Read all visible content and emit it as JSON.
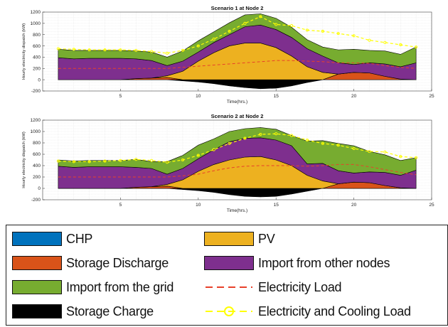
{
  "chart_data": [
    {
      "type": "area",
      "title": "Scenario 1 at Node 2",
      "xlabel": "Time(hrs.)",
      "ylabel": "Hourly electricity dispatch (kW)",
      "xlim": [
        0,
        25
      ],
      "ylim": [
        -200,
        1200
      ],
      "xticks": [
        5,
        10,
        15,
        20,
        25
      ],
      "yticks": [
        -200,
        0,
        200,
        400,
        600,
        800,
        1000,
        1200
      ],
      "grid": true,
      "x": [
        1,
        2,
        3,
        4,
        5,
        6,
        7,
        8,
        9,
        10,
        11,
        12,
        13,
        14,
        15,
        16,
        17,
        18,
        19,
        20,
        21,
        22,
        23,
        24
      ],
      "series": [
        {
          "name": "Storage Charge",
          "values": [
            0,
            0,
            0,
            0,
            0,
            0,
            0,
            0,
            -20,
            -40,
            -70,
            -110,
            -140,
            -160,
            -150,
            -110,
            -50,
            0,
            0,
            0,
            0,
            0,
            0,
            0
          ]
        },
        {
          "name": "CHP",
          "values": [
            0,
            0,
            0,
            0,
            0,
            0,
            0,
            0,
            0,
            0,
            0,
            0,
            0,
            0,
            0,
            0,
            0,
            0,
            0,
            0,
            0,
            0,
            0,
            0
          ]
        },
        {
          "name": "Storage Discharge",
          "values": [
            0,
            0,
            0,
            0,
            0,
            20,
            30,
            40,
            0,
            0,
            0,
            0,
            0,
            0,
            0,
            0,
            0,
            0,
            100,
            130,
            120,
            60,
            10,
            0
          ]
        },
        {
          "name": "PV",
          "values": [
            0,
            0,
            0,
            0,
            0,
            0,
            0,
            30,
            150,
            330,
            480,
            600,
            650,
            650,
            570,
            420,
            230,
            130,
            0,
            0,
            0,
            0,
            0,
            0
          ]
        },
        {
          "name": "Import from other nodes",
          "values": [
            390,
            370,
            380,
            380,
            380,
            350,
            310,
            180,
            180,
            160,
            180,
            200,
            290,
            320,
            320,
            330,
            320,
            290,
            200,
            140,
            180,
            220,
            220,
            300
          ]
        },
        {
          "name": "Import from the grid",
          "values": [
            150,
            150,
            140,
            140,
            140,
            140,
            150,
            150,
            180,
            200,
            190,
            210,
            210,
            200,
            200,
            180,
            160,
            160,
            230,
            270,
            220,
            230,
            220,
            280
          ]
        }
      ],
      "lines": [
        {
          "name": "Electricity Load",
          "values": [
            200,
            200,
            200,
            200,
            200,
            200,
            200,
            200,
            220,
            240,
            260,
            280,
            300,
            320,
            340,
            340,
            330,
            320,
            300,
            300,
            290,
            250,
            220,
            200
          ]
        },
        {
          "name": "Electricity and Cooling Load",
          "values": [
            550,
            540,
            530,
            530,
            530,
            520,
            500,
            470,
            520,
            600,
            720,
            860,
            1000,
            1120,
            980,
            960,
            880,
            860,
            820,
            780,
            700,
            660,
            620,
            580
          ]
        }
      ]
    },
    {
      "type": "area",
      "title": "Scenario 2 at Node 2",
      "xlabel": "Time(hrs.)",
      "ylabel": "Hourly electricity dispatch (kW)",
      "xlim": [
        0,
        25
      ],
      "ylim": [
        -200,
        1200
      ],
      "xticks": [
        5,
        10,
        15,
        20,
        25
      ],
      "yticks": [
        -200,
        0,
        200,
        400,
        600,
        800,
        1000,
        1200
      ],
      "grid": true,
      "x": [
        1,
        2,
        3,
        4,
        5,
        6,
        7,
        8,
        9,
        10,
        11,
        12,
        13,
        14,
        15,
        16,
        17,
        18,
        19,
        20,
        21,
        22,
        23,
        24
      ],
      "series": [
        {
          "name": "Storage Charge",
          "values": [
            0,
            0,
            0,
            0,
            0,
            0,
            0,
            0,
            -20,
            -40,
            -70,
            -110,
            -140,
            -150,
            -140,
            -100,
            -50,
            0,
            0,
            0,
            0,
            0,
            0,
            0
          ]
        },
        {
          "name": "CHP",
          "values": [
            0,
            0,
            0,
            0,
            0,
            0,
            0,
            0,
            0,
            0,
            0,
            0,
            0,
            0,
            0,
            0,
            0,
            0,
            0,
            0,
            0,
            0,
            0,
            0
          ]
        },
        {
          "name": "Storage Discharge",
          "values": [
            0,
            0,
            0,
            0,
            0,
            20,
            30,
            40,
            0,
            0,
            0,
            0,
            0,
            0,
            0,
            0,
            0,
            0,
            80,
            110,
            100,
            50,
            10,
            0
          ]
        },
        {
          "name": "PV",
          "values": [
            0,
            0,
            0,
            0,
            0,
            0,
            0,
            30,
            150,
            300,
            420,
            500,
            550,
            560,
            500,
            400,
            230,
            130,
            0,
            0,
            0,
            0,
            0,
            0
          ]
        },
        {
          "name": "Import from other nodes",
          "values": [
            390,
            370,
            380,
            380,
            380,
            350,
            320,
            180,
            200,
            220,
            260,
            320,
            330,
            330,
            350,
            350,
            200,
            310,
            230,
            160,
            190,
            230,
            220,
            320
          ]
        },
        {
          "name": "Import from the grid",
          "values": [
            110,
            110,
            110,
            110,
            110,
            140,
            120,
            220,
            230,
            240,
            190,
            180,
            170,
            180,
            190,
            180,
            400,
            400,
            480,
            480,
            360,
            310,
            260,
            220
          ]
        }
      ],
      "lines": [
        {
          "name": "Electricity Load",
          "values": [
            200,
            200,
            200,
            200,
            200,
            200,
            200,
            200,
            220,
            250,
            310,
            360,
            390,
            400,
            400,
            400,
            390,
            400,
            420,
            420,
            380,
            330,
            280,
            240
          ]
        },
        {
          "name": "Electricity and Cooling Load",
          "values": [
            480,
            470,
            470,
            480,
            490,
            510,
            490,
            460,
            500,
            580,
            680,
            790,
            880,
            950,
            960,
            930,
            850,
            790,
            760,
            700,
            650,
            640,
            560,
            540
          ]
        }
      ]
    }
  ],
  "legend": {
    "items": [
      {
        "label": "CHP",
        "color": "#0072BD",
        "kind": "patch"
      },
      {
        "label": "PV",
        "color": "#EDB120",
        "kind": "patch"
      },
      {
        "label": "Storage Discharge",
        "color": "#D95319",
        "kind": "patch"
      },
      {
        "label": "Import from other nodes",
        "color": "#7E2F8E",
        "kind": "patch"
      },
      {
        "label": "Import from the grid",
        "color": "#77AC30",
        "kind": "patch"
      },
      {
        "label": "Electricity Load",
        "color": "#e8412a",
        "kind": "dashed-line"
      },
      {
        "label": "Storage Charge",
        "color": "#000000",
        "kind": "patch"
      },
      {
        "label": "Electricity and Cooling Load",
        "color": "#ffff00",
        "kind": "dashed-circle-line"
      }
    ]
  },
  "colors": {
    "CHP": "#0072BD",
    "Storage Discharge": "#D95319",
    "PV": "#EDB120",
    "Import from other nodes": "#7E2F8E",
    "Import from the grid": "#77AC30",
    "Storage Charge": "#000000",
    "Electricity Load": "#e8412a",
    "Electricity and Cooling Load": "#ffff00"
  }
}
